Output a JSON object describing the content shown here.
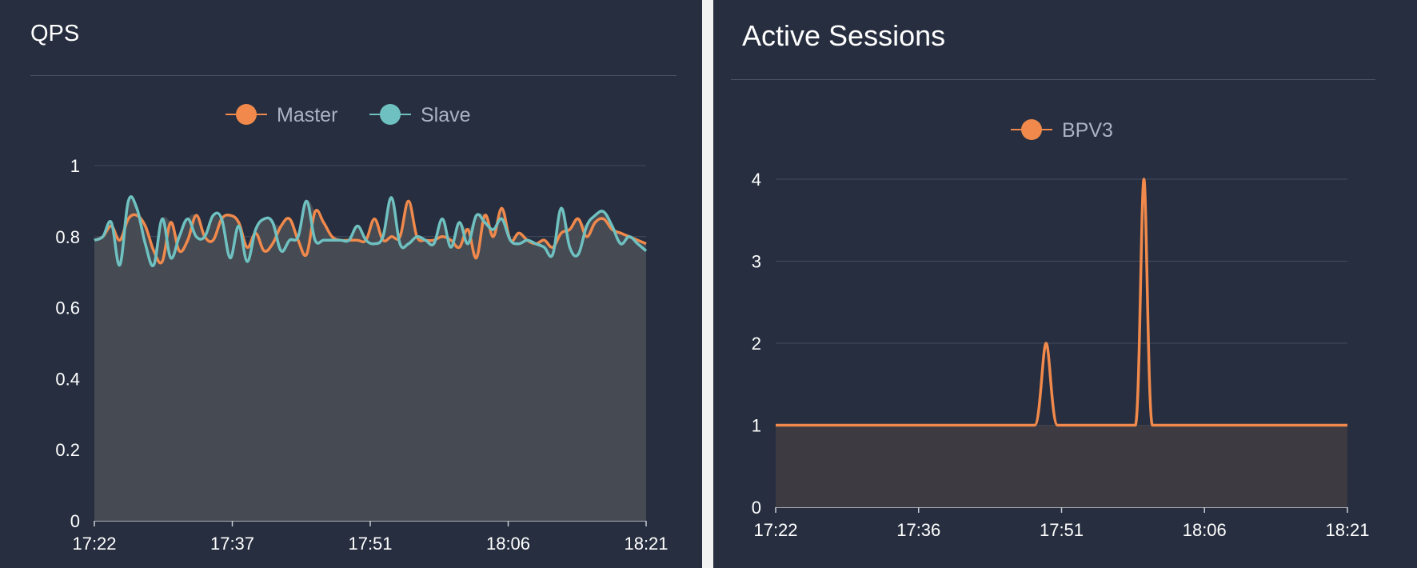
{
  "chart_data": [
    {
      "type": "line",
      "title": "QPS",
      "legend_position": "top-center",
      "area_fill": true,
      "grid": true,
      "x_tick_labels": [
        "17:22",
        "17:37",
        "17:51",
        "18:06",
        "18:21"
      ],
      "y_tick_labels": [
        "0",
        "0.2",
        "0.4",
        "0.6",
        "0.8",
        "1"
      ],
      "ylim": [
        0,
        1
      ],
      "series": [
        {
          "name": "Master",
          "color": "#f0894b",
          "values": [
            0.79,
            0.8,
            0.83,
            0.79,
            0.85,
            0.86,
            0.83,
            0.76,
            0.73,
            0.84,
            0.76,
            0.79,
            0.86,
            0.8,
            0.79,
            0.85,
            0.86,
            0.84,
            0.77,
            0.81,
            0.76,
            0.78,
            0.83,
            0.85,
            0.79,
            0.75,
            0.87,
            0.84,
            0.8,
            0.79,
            0.79,
            0.79,
            0.79,
            0.85,
            0.79,
            0.8,
            0.8,
            0.9,
            0.8,
            0.79,
            0.79,
            0.8,
            0.79,
            0.77,
            0.82,
            0.74,
            0.86,
            0.8,
            0.88,
            0.79,
            0.81,
            0.79,
            0.78,
            0.79,
            0.77,
            0.81,
            0.82,
            0.85,
            0.8,
            0.84,
            0.85,
            0.82,
            0.81,
            0.8,
            0.79,
            0.78
          ]
        },
        {
          "name": "Slave",
          "color": "#6fc1c1",
          "values": [
            0.79,
            0.8,
            0.84,
            0.72,
            0.9,
            0.88,
            0.78,
            0.72,
            0.85,
            0.74,
            0.8,
            0.85,
            0.8,
            0.8,
            0.86,
            0.85,
            0.74,
            0.83,
            0.73,
            0.82,
            0.85,
            0.84,
            0.76,
            0.79,
            0.8,
            0.9,
            0.79,
            0.79,
            0.79,
            0.79,
            0.79,
            0.83,
            0.79,
            0.78,
            0.8,
            0.91,
            0.78,
            0.78,
            0.8,
            0.79,
            0.78,
            0.85,
            0.77,
            0.84,
            0.78,
            0.86,
            0.84,
            0.82,
            0.85,
            0.79,
            0.78,
            0.79,
            0.78,
            0.77,
            0.75,
            0.88,
            0.77,
            0.75,
            0.83,
            0.86,
            0.87,
            0.83,
            0.78,
            0.8,
            0.78,
            0.76
          ]
        }
      ]
    },
    {
      "type": "line",
      "title": "Active Sessions",
      "legend_position": "top-center",
      "area_fill": true,
      "grid": true,
      "x_tick_labels": [
        "17:22",
        "17:36",
        "17:51",
        "18:06",
        "18:21"
      ],
      "y_tick_labels": [
        "0",
        "1",
        "2",
        "3",
        "4"
      ],
      "ylim": [
        0,
        4
      ],
      "series": [
        {
          "name": "BPV3",
          "color": "#f0894b",
          "x": [
            0,
            0.455,
            0.473,
            0.483,
            0.493,
            0.511,
            1
          ],
          "values": [
            1,
            1,
            1,
            2,
            1,
            1,
            1
          ],
          "spikes": [
            {
              "x": 0.473,
              "value": 2,
              "width": 0.04
            },
            {
              "x": 0.644,
              "value": 4,
              "width": 0.03
            }
          ]
        }
      ]
    }
  ]
}
